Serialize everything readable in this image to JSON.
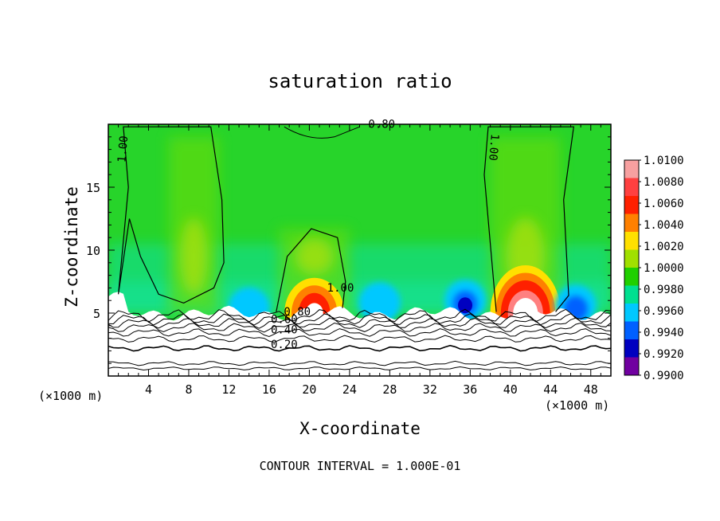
{
  "chart_data": {
    "type": "heatmap",
    "title": "saturation ratio",
    "xlabel": "X-coordinate",
    "ylabel": "Z-coordinate",
    "x_unit_left": "(×1000 m)",
    "x_unit_right": "(×1000 m)",
    "footnote": "CONTOUR INTERVAL = 1.000E-01",
    "xlim": [
      0,
      50
    ],
    "ylim": [
      0,
      20
    ],
    "x_ticks": [
      4,
      8,
      12,
      16,
      20,
      24,
      28,
      32,
      36,
      40,
      44,
      48
    ],
    "y_ticks": [
      5,
      10,
      15
    ],
    "colorbar": {
      "levels": [
        "1.0100",
        "1.0080",
        "1.0060",
        "1.0040",
        "1.0020",
        "1.0000",
        "0.9980",
        "0.9960",
        "0.9940",
        "0.9920",
        "0.9900"
      ],
      "colors": [
        "#f7a0a0",
        "#ff4040",
        "#ff2000",
        "#ff8000",
        "#ffe000",
        "#a0e000",
        "#20d000",
        "#00e090",
        "#00c8ff",
        "#0060ff",
        "#0000c0",
        "#7000a0"
      ]
    },
    "contour_labels": [
      {
        "text": "1.00",
        "x": 1.8,
        "y": 18.0
      },
      {
        "text": "1.00",
        "x": 38.0,
        "y": 18.2
      },
      {
        "text": "1.00",
        "x": 23.1,
        "y": 6.7
      },
      {
        "text": "0.80",
        "x": 27.2,
        "y": 19.7
      },
      {
        "text": "0.80",
        "x": 18.8,
        "y": 4.8
      },
      {
        "text": "0.60",
        "x": 17.5,
        "y": 4.2
      },
      {
        "text": "0.40",
        "x": 17.5,
        "y": 3.4
      },
      {
        "text": "0.20",
        "x": 17.5,
        "y": 2.2
      }
    ],
    "features": {
      "cloud_layer_top_km": 5,
      "moist_regions": [
        {
          "x": [
            6,
            11
          ],
          "y": [
            5,
            19
          ],
          "peak": 1.002
        },
        {
          "x": [
            17,
            24
          ],
          "y": [
            5,
            11.7
          ],
          "peak": 1.006
        },
        {
          "x": [
            38,
            45
          ],
          "y": [
            5,
            19
          ],
          "peak": 1.008
        }
      ],
      "dry_pockets": [
        {
          "x": 14,
          "y": 5.4,
          "min": 0.996
        },
        {
          "x": 27,
          "y": 5.8,
          "min": 0.995
        },
        {
          "x": 35.5,
          "y": 6,
          "min": 0.992
        },
        {
          "x": 46.5,
          "y": 5.6,
          "min": 0.994
        }
      ]
    }
  }
}
